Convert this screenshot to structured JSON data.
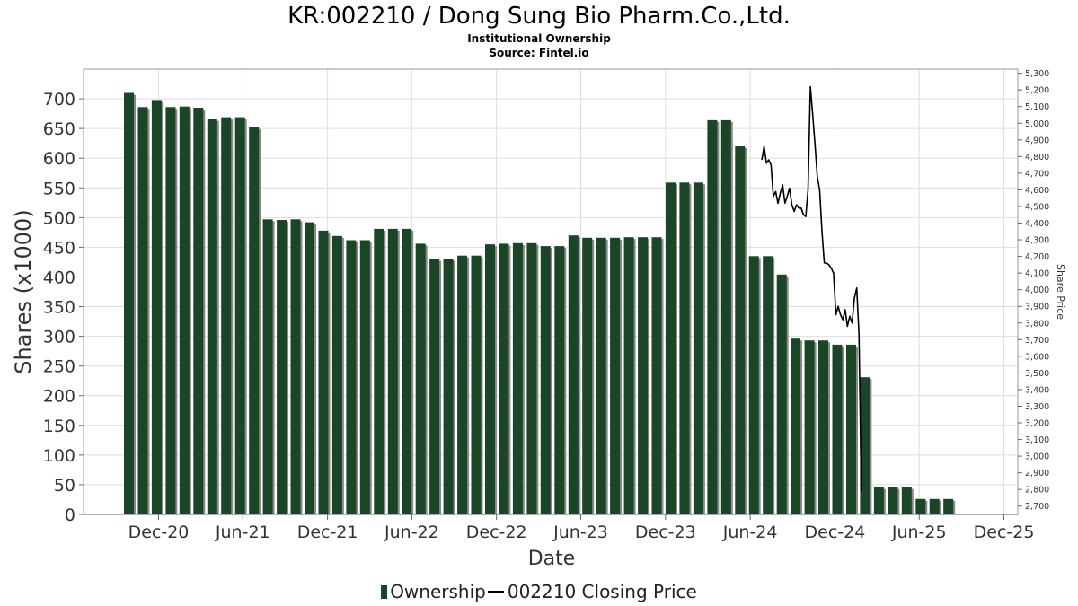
{
  "header": {
    "title": "KR:002210 / Dong Sung Bio Pharm.Co.,Ltd.",
    "subtitle": "Institutional Ownership",
    "source": "Source: Fintel.io"
  },
  "legend": {
    "ownership_label": "Ownership",
    "price_label": "002210 Closing Price"
  },
  "colors": {
    "bar": "#1a4526",
    "bar_shadow": "#8a8a8a",
    "line": "#000000",
    "grid": "#dedede"
  },
  "chart_data": {
    "type": "bar",
    "title": "KR:002210 / Dong Sung Bio Pharm.Co.,Ltd.",
    "xlabel": "Date",
    "ylabel": "Shares (x1000)",
    "y2label": "Share Price",
    "grid": true,
    "legend_position": "bottom",
    "xlim": [
      "2020-06-22",
      "2025-12-31"
    ],
    "ylim": [
      0,
      750
    ],
    "y2lim": [
      2650,
      5325
    ],
    "x_ticks": [
      {
        "label": "Dec-20",
        "date": "2020-12-01"
      },
      {
        "label": "Jun-21",
        "date": "2021-06-01"
      },
      {
        "label": "Dec-21",
        "date": "2021-12-01"
      },
      {
        "label": "Jun-22",
        "date": "2022-06-01"
      },
      {
        "label": "Dec-22",
        "date": "2022-12-01"
      },
      {
        "label": "Jun-23",
        "date": "2023-06-01"
      },
      {
        "label": "Dec-23",
        "date": "2023-12-01"
      },
      {
        "label": "Jun-24",
        "date": "2024-06-01"
      },
      {
        "label": "Dec-24",
        "date": "2024-12-01"
      },
      {
        "label": "Jun-25",
        "date": "2025-06-01"
      },
      {
        "label": "Dec-25",
        "date": "2025-12-01"
      }
    ],
    "y_ticks": [
      "0",
      "50",
      "100",
      "150",
      "200",
      "250",
      "300",
      "350",
      "400",
      "450",
      "500",
      "550",
      "600",
      "650",
      "700"
    ],
    "y2_ticks": [
      "2,700",
      "2,800",
      "2,900",
      "3,000",
      "3,100",
      "3,200",
      "3,300",
      "3,400",
      "3,500",
      "3,600",
      "3,700",
      "3,800",
      "3,900",
      "4,000",
      "4,100",
      "4,200",
      "4,300",
      "4,400",
      "4,500",
      "4,600",
      "4,700",
      "4,800",
      "4,900",
      "5,000",
      "5,100",
      "5,200",
      "5,300"
    ],
    "series": [
      {
        "name": "Ownership",
        "type": "bar",
        "points": [
          [
            "2020-09-28",
            710
          ],
          [
            "2020-10-28",
            686
          ],
          [
            "2020-11-27",
            698
          ],
          [
            "2020-12-27",
            686
          ],
          [
            "2021-01-26",
            687
          ],
          [
            "2021-02-25",
            685
          ],
          [
            "2021-03-27",
            666
          ],
          [
            "2021-04-26",
            669
          ],
          [
            "2021-05-26",
            669
          ],
          [
            "2021-06-25",
            652
          ],
          [
            "2021-07-25",
            497
          ],
          [
            "2021-08-24",
            496
          ],
          [
            "2021-09-23",
            497
          ],
          [
            "2021-10-23",
            492
          ],
          [
            "2021-11-22",
            478
          ],
          [
            "2021-12-22",
            469
          ],
          [
            "2022-01-21",
            462
          ],
          [
            "2022-02-20",
            462
          ],
          [
            "2022-03-22",
            481
          ],
          [
            "2022-04-21",
            481
          ],
          [
            "2022-05-21",
            481
          ],
          [
            "2022-06-20",
            456
          ],
          [
            "2022-07-20",
            430
          ],
          [
            "2022-08-19",
            430
          ],
          [
            "2022-09-18",
            436
          ],
          [
            "2022-10-18",
            436
          ],
          [
            "2022-11-17",
            455
          ],
          [
            "2022-12-17",
            456
          ],
          [
            "2023-01-16",
            457
          ],
          [
            "2023-02-15",
            457
          ],
          [
            "2023-03-17",
            452
          ],
          [
            "2023-04-16",
            452
          ],
          [
            "2023-05-16",
            470
          ],
          [
            "2023-06-15",
            466
          ],
          [
            "2023-07-15",
            466
          ],
          [
            "2023-08-14",
            466
          ],
          [
            "2023-09-13",
            467
          ],
          [
            "2023-10-13",
            467
          ],
          [
            "2023-11-12",
            467
          ],
          [
            "2023-12-12",
            559
          ],
          [
            "2024-01-11",
            559
          ],
          [
            "2024-02-10",
            559
          ],
          [
            "2024-03-11",
            664
          ],
          [
            "2024-04-10",
            664
          ],
          [
            "2024-05-10",
            620
          ],
          [
            "2024-06-09",
            435
          ],
          [
            "2024-07-09",
            435
          ],
          [
            "2024-08-08",
            404
          ],
          [
            "2024-09-07",
            296
          ],
          [
            "2024-10-07",
            293
          ],
          [
            "2024-11-06",
            293
          ],
          [
            "2024-12-06",
            286
          ],
          [
            "2025-01-05",
            286
          ],
          [
            "2025-02-04",
            231
          ],
          [
            "2025-03-06",
            46
          ],
          [
            "2025-04-05",
            46
          ],
          [
            "2025-05-05",
            46
          ],
          [
            "2025-06-04",
            26
          ],
          [
            "2025-07-04",
            26
          ],
          [
            "2025-08-03",
            26
          ]
        ]
      },
      {
        "name": "002210 Closing Price",
        "type": "line",
        "points": [
          [
            "2024-06-26",
            4780
          ],
          [
            "2024-07-01",
            4860
          ],
          [
            "2024-07-06",
            4760
          ],
          [
            "2024-07-11",
            4780
          ],
          [
            "2024-07-16",
            4750
          ],
          [
            "2024-07-21",
            4560
          ],
          [
            "2024-07-26",
            4590
          ],
          [
            "2024-07-31",
            4520
          ],
          [
            "2024-08-05",
            4580
          ],
          [
            "2024-08-10",
            4630
          ],
          [
            "2024-08-15",
            4520
          ],
          [
            "2024-08-20",
            4560
          ],
          [
            "2024-08-25",
            4610
          ],
          [
            "2024-08-30",
            4510
          ],
          [
            "2024-09-04",
            4470
          ],
          [
            "2024-09-09",
            4510
          ],
          [
            "2024-09-14",
            4490
          ],
          [
            "2024-09-19",
            4490
          ],
          [
            "2024-09-24",
            4450
          ],
          [
            "2024-09-29",
            4440
          ],
          [
            "2024-10-04",
            4600
          ],
          [
            "2024-10-09",
            5220
          ],
          [
            "2024-10-14",
            5050
          ],
          [
            "2024-10-19",
            4870
          ],
          [
            "2024-10-24",
            4680
          ],
          [
            "2024-10-29",
            4600
          ],
          [
            "2024-11-03",
            4350
          ],
          [
            "2024-11-08",
            4160
          ],
          [
            "2024-11-13",
            4160
          ],
          [
            "2024-11-18",
            4150
          ],
          [
            "2024-11-23",
            4130
          ],
          [
            "2024-11-28",
            4100
          ],
          [
            "2024-12-03",
            3850
          ],
          [
            "2024-12-08",
            3900
          ],
          [
            "2024-12-13",
            3850
          ],
          [
            "2024-12-18",
            3820
          ],
          [
            "2024-12-23",
            3880
          ],
          [
            "2024-12-28",
            3780
          ],
          [
            "2025-01-02",
            3840
          ],
          [
            "2025-01-07",
            3800
          ],
          [
            "2025-01-12",
            3950
          ],
          [
            "2025-01-17",
            4010
          ],
          [
            "2025-01-22",
            3730
          ],
          [
            "2025-01-27",
            2790
          ]
        ]
      }
    ]
  }
}
